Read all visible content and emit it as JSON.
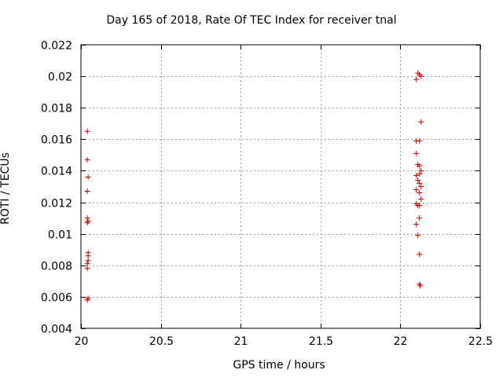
{
  "chart_data": {
    "type": "scatter",
    "title": "Day 165 of 2018, Rate Of TEC Index for receiver tnal",
    "xlabel": "GPS time / hours",
    "ylabel": "ROTI / TECUs",
    "xlim": [
      20,
      22.5
    ],
    "ylim": [
      0.004,
      0.022
    ],
    "grid": true,
    "color": "#cc0000",
    "xticks": [
      20,
      20.5,
      21,
      21.5,
      22,
      22.5
    ],
    "xtick_labels": [
      "20",
      "20.5",
      "21",
      "21.5",
      "22",
      "22.5"
    ],
    "yticks": [
      0.004,
      0.006,
      0.008,
      0.01,
      0.012,
      0.014,
      0.016,
      0.018,
      0.02,
      0.022
    ],
    "ytick_labels": [
      "0.004",
      "0.006",
      "0.008",
      "0.01",
      "0.012",
      "0.014",
      "0.016",
      "0.018",
      "0.02",
      "0.022"
    ],
    "series": [
      {
        "name": "ROTI",
        "points": [
          [
            20.04,
            0.0165
          ],
          [
            20.04,
            0.0147
          ],
          [
            20.045,
            0.0136
          ],
          [
            20.04,
            0.0127
          ],
          [
            20.04,
            0.011
          ],
          [
            20.045,
            0.0108
          ],
          [
            20.04,
            0.0107
          ],
          [
            20.045,
            0.0088
          ],
          [
            20.045,
            0.0086
          ],
          [
            20.045,
            0.0083
          ],
          [
            20.04,
            0.0081
          ],
          [
            20.04,
            0.0078
          ],
          [
            20.045,
            0.0059
          ],
          [
            20.04,
            0.0058
          ],
          [
            22.11,
            0.0202
          ],
          [
            22.12,
            0.0201
          ],
          [
            22.13,
            0.02
          ],
          [
            22.1,
            0.0198
          ],
          [
            22.13,
            0.0171
          ],
          [
            22.1,
            0.0159
          ],
          [
            22.12,
            0.0159
          ],
          [
            22.1,
            0.0151
          ],
          [
            22.11,
            0.0144
          ],
          [
            22.12,
            0.0143
          ],
          [
            22.13,
            0.014
          ],
          [
            22.12,
            0.0138
          ],
          [
            22.1,
            0.0137
          ],
          [
            22.11,
            0.0134
          ],
          [
            22.12,
            0.0132
          ],
          [
            22.13,
            0.013
          ],
          [
            22.1,
            0.0128
          ],
          [
            22.12,
            0.0126
          ],
          [
            22.13,
            0.0122
          ],
          [
            22.1,
            0.0119
          ],
          [
            22.11,
            0.0118
          ],
          [
            22.12,
            0.0118
          ],
          [
            22.12,
            0.011
          ],
          [
            22.1,
            0.0106
          ],
          [
            22.11,
            0.0099
          ],
          [
            22.12,
            0.0087
          ],
          [
            22.12,
            0.0068
          ],
          [
            22.125,
            0.0067
          ]
        ]
      }
    ]
  }
}
